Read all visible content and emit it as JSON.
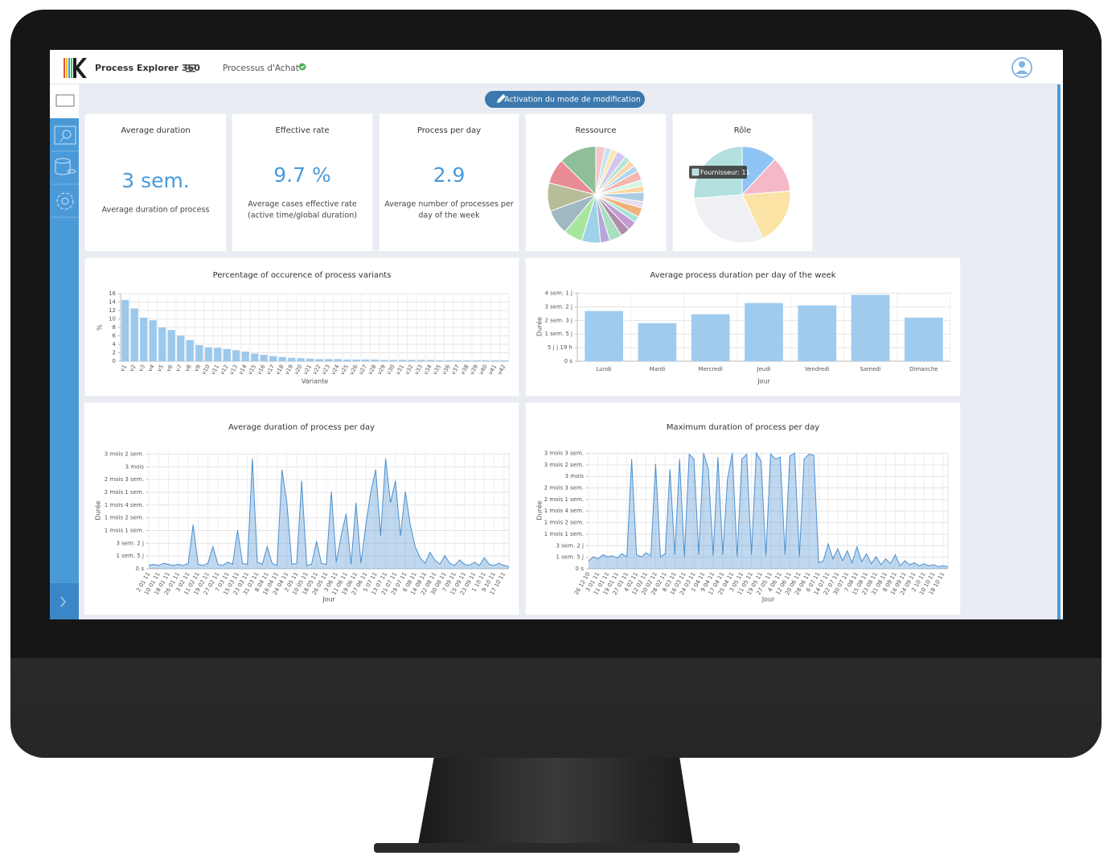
{
  "app": {
    "name": "Process Explorer 360",
    "process": "Processus d'Achat"
  },
  "toolbar": {
    "edit_button": "Activation du mode de modification"
  },
  "kpis": [
    {
      "title": "Average duration",
      "value": "3 sem.",
      "description": [
        "Average duration of process"
      ]
    },
    {
      "title": "Effective rate",
      "value": "9.7 %",
      "description": [
        "Average cases effective rate",
        "(active time/global duration)"
      ]
    },
    {
      "title": "Process per day",
      "value": "2.9",
      "description": [
        "Average number of processes per",
        "day of the week"
      ]
    }
  ],
  "chart_data": [
    {
      "type": "pie",
      "title": "Ressource",
      "values": [
        3,
        2,
        2,
        3,
        2,
        2,
        2,
        3,
        2,
        2,
        3,
        2,
        3,
        2,
        3,
        3,
        4,
        3,
        6,
        6,
        8,
        9,
        8,
        12
      ],
      "colors": [
        "#f7c6c7",
        "#c5e3f6",
        "#fde7b0",
        "#d4c4f0",
        "#b9e6d3",
        "#f9d5a7",
        "#aed6f1",
        "#f5b7b1",
        "#d5f5e3",
        "#fad7a0",
        "#a9cce3",
        "#e8daef",
        "#f0b27a",
        "#a3e4d7",
        "#c39bd3",
        "#b08ca8",
        "#a9dfbf",
        "#b7a7d9",
        "#9dd2e8",
        "#a8e6a0",
        "#9fb8c4",
        "#b7bd98",
        "#e88b94",
        "#8fbf98"
      ]
    },
    {
      "type": "pie",
      "title": "Rôle",
      "values": [
        5,
        5,
        8,
        13,
        11
      ],
      "colors": [
        "#8ec5f5",
        "#f5b8c6",
        "#fbe3a6",
        "#eef0f3",
        "#b2e0df"
      ],
      "tooltip": "Fournisseur: 11"
    },
    {
      "type": "bar",
      "title": "Percentage of occurence of process variants",
      "x_label": "Variante",
      "y_label": "%",
      "categories": [
        "v1",
        "v2",
        "v3",
        "v4",
        "v5",
        "v6",
        "v7",
        "v8",
        "v9",
        "v10",
        "v11",
        "v12",
        "v13",
        "v14",
        "v15",
        "v16",
        "v17",
        "v18",
        "v19",
        "v20",
        "v21",
        "v22",
        "v23",
        "v24",
        "v25",
        "v26",
        "v27",
        "v28",
        "v29",
        "v30",
        "v31",
        "v32",
        "v33",
        "v34",
        "v35",
        "v36",
        "v37",
        "v38",
        "v39",
        "v40",
        "v41",
        "v42"
      ],
      "values": [
        14.5,
        12.5,
        10.3,
        9.7,
        8,
        7.4,
        6.1,
        5,
        3.8,
        3.3,
        3.2,
        2.9,
        2.6,
        2.3,
        1.8,
        1.5,
        1.2,
        1,
        0.8,
        0.7,
        0.6,
        0.5,
        0.5,
        0.5,
        0.4,
        0.4,
        0.4,
        0.4,
        0.3,
        0.3,
        0.3,
        0.3,
        0.3,
        0.3,
        0.2,
        0.2,
        0.2,
        0.2,
        0.2,
        0.2,
        0.2,
        0.2
      ],
      "color": "#9cc8ec",
      "ylim": [
        0,
        16
      ],
      "yticks": [
        0,
        2,
        4,
        6,
        8,
        10,
        12,
        14,
        16
      ],
      "grid": true
    },
    {
      "type": "bar",
      "title": "Average process duration per day of the week",
      "x_label": "Jour",
      "y_label": "Durée",
      "categories": [
        "Lundi",
        "Mardi",
        "Mercredi",
        "Jeudi",
        "Vendredi",
        "Samedi",
        "Dimanche"
      ],
      "values": [
        21.4,
        16.2,
        20,
        24.8,
        23.8,
        28.3,
        18.6
      ],
      "color": "#9fcbef",
      "ylim": [
        0,
        29.5
      ],
      "yticks": [
        {
          "value": 0,
          "label": "0 s"
        },
        {
          "value": 5.79,
          "label": "5 j | 19 h"
        },
        {
          "value": 11.58,
          "label": "1 sem. 5 j"
        },
        {
          "value": 17.38,
          "label": "2 sem. 3 j"
        },
        {
          "value": 23.17,
          "label": "3 sem. 2 j"
        },
        {
          "value": 28.96,
          "label": "4 sem. 1 j"
        }
      ],
      "grid": true
    },
    {
      "type": "line",
      "title": "Average duration of process per day",
      "x_label": "Jour",
      "y_label": "Durée",
      "categories": [
        "2 01 11",
        null,
        "10 01 11",
        null,
        "18 01 11",
        null,
        "26 01 11",
        null,
        "3 02 11",
        null,
        "11 02 11",
        null,
        "19 02 11",
        null,
        "27 02 11",
        null,
        "7 03 11",
        null,
        "15 03 11",
        null,
        "23 03 11",
        null,
        "31 03 11",
        null,
        "8 04 11",
        null,
        "16 04 11",
        null,
        "24 04 11",
        null,
        "2 05 11",
        null,
        "10 05 11",
        null,
        "18 05 11",
        null,
        "26 05 11",
        null,
        "3 06 11",
        null,
        "11 06 11",
        null,
        "19 06 11",
        null,
        "27 06 11",
        null,
        "5 07 11",
        null,
        "13 07 11",
        null,
        "21 07 11",
        null,
        "29 07 11",
        null,
        "6 08 11",
        null,
        "14 08 11",
        null,
        "22 08 11",
        null,
        "30 08 11",
        null,
        "7 09 11",
        null,
        "15 09 11",
        null,
        "23 09 11",
        null,
        "1 10 11",
        null,
        "9 10 11",
        null,
        "17 10 11",
        null
      ],
      "values": [
        3,
        4,
        3,
        5,
        4,
        3,
        4,
        3,
        5,
        40,
        4,
        3,
        5,
        20,
        4,
        3,
        6,
        4,
        35,
        5,
        4,
        100,
        6,
        4,
        20,
        5,
        3,
        90,
        60,
        4,
        5,
        80,
        3,
        4,
        25,
        5,
        4,
        70,
        6,
        30,
        50,
        4,
        60,
        5,
        40,
        70,
        90,
        30,
        100,
        60,
        80,
        30,
        70,
        40,
        20,
        10,
        5,
        15,
        8,
        4,
        12,
        5,
        3,
        8,
        4,
        3,
        6,
        3,
        10,
        4,
        3,
        5,
        3,
        2
      ],
      "color": "#4a90d0",
      "ylim": [
        0,
        106
      ],
      "yticks": [
        {
          "value": 0,
          "label": "0 s"
        },
        {
          "value": 11.58,
          "label": "1 sem. 5 j"
        },
        {
          "value": 23.16,
          "label": "3 sem. 2 j"
        },
        {
          "value": 34.74,
          "label": "1 mois 1 sem."
        },
        {
          "value": 46.32,
          "label": "1 mois 2 sem."
        },
        {
          "value": 57.9,
          "label": "1 mois 4 sem."
        },
        {
          "value": 69.48,
          "label": "2 mois 1 sem."
        },
        {
          "value": 81.06,
          "label": "2 mois 3 sem."
        },
        {
          "value": 92.64,
          "label": "3 mois"
        },
        {
          "value": 104.22,
          "label": "3 mois 2 sem."
        }
      ],
      "grid": true
    },
    {
      "type": "line",
      "title": "Maximum duration of process per day",
      "x_label": "Jour",
      "y_label": "Durée",
      "categories": [
        "26 12 10",
        null,
        "3 01 11",
        null,
        "11 01 11",
        null,
        "19 01 11",
        null,
        "27 01 11",
        null,
        "4 02 11",
        null,
        "12 02 11",
        null,
        "20 02 11",
        null,
        "28 02 11",
        null,
        "8 03 11",
        null,
        "16 03 11",
        null,
        "24 03 11",
        null,
        "1 04 11",
        null,
        "9 04 11",
        null,
        "17 04 11",
        null,
        "25 04 11",
        null,
        "3 05 11",
        null,
        "11 05 11",
        null,
        "19 05 11",
        null,
        "27 05 11",
        null,
        "4 06 11",
        null,
        "12 06 11",
        null,
        "20 06 11",
        null,
        "28 06 11",
        null,
        "6 07 11",
        null,
        "14 07 11",
        null,
        "22 07 11",
        null,
        "30 07 11",
        null,
        "7 08 11",
        null,
        "15 08 11",
        null,
        "23 08 11",
        null,
        "31 08 11",
        null,
        "8 09 11",
        null,
        "16 09 11",
        null,
        "24 09 11",
        null,
        "2 10 11",
        null,
        "10 10 11",
        null,
        "18 10 11",
        null
      ],
      "values": [
        8,
        12,
        10,
        14,
        12,
        13,
        11,
        15,
        12,
        110,
        14,
        12,
        16,
        13,
        105,
        12,
        15,
        100,
        14,
        110,
        12,
        115,
        110,
        14,
        116,
        100,
        13,
        112,
        14,
        90,
        116,
        12,
        110,
        115,
        14,
        116,
        108,
        13,
        115,
        110,
        112,
        14,
        113,
        116,
        12,
        110,
        115,
        114,
        6,
        8,
        25,
        10,
        20,
        8,
        18,
        6,
        22,
        7,
        15,
        5,
        12,
        4,
        10,
        5,
        14,
        3,
        8,
        4,
        6,
        3,
        5,
        3,
        4,
        2,
        3,
        2
      ],
      "color": "#4a90d0",
      "ylim": [
        0,
        117
      ],
      "yticks": [
        {
          "value": 0,
          "label": "0 s"
        },
        {
          "value": 11.58,
          "label": "1 sem. 5 j"
        },
        {
          "value": 23.16,
          "label": "3 sem. 2 j"
        },
        {
          "value": 34.74,
          "label": "1 mois 1 sem."
        },
        {
          "value": 46.32,
          "label": "1 mois 2 sem."
        },
        {
          "value": 57.9,
          "label": "1 mois 4 sem."
        },
        {
          "value": 69.48,
          "label": "2 mois 1 sem."
        },
        {
          "value": 81.06,
          "label": "2 mois 3 sem."
        },
        {
          "value": 92.64,
          "label": "3 mois"
        },
        {
          "value": 104.22,
          "label": "3 mois 2 sem."
        },
        {
          "value": 115.8,
          "label": "3 mois 3 sem."
        }
      ],
      "grid": true
    }
  ]
}
